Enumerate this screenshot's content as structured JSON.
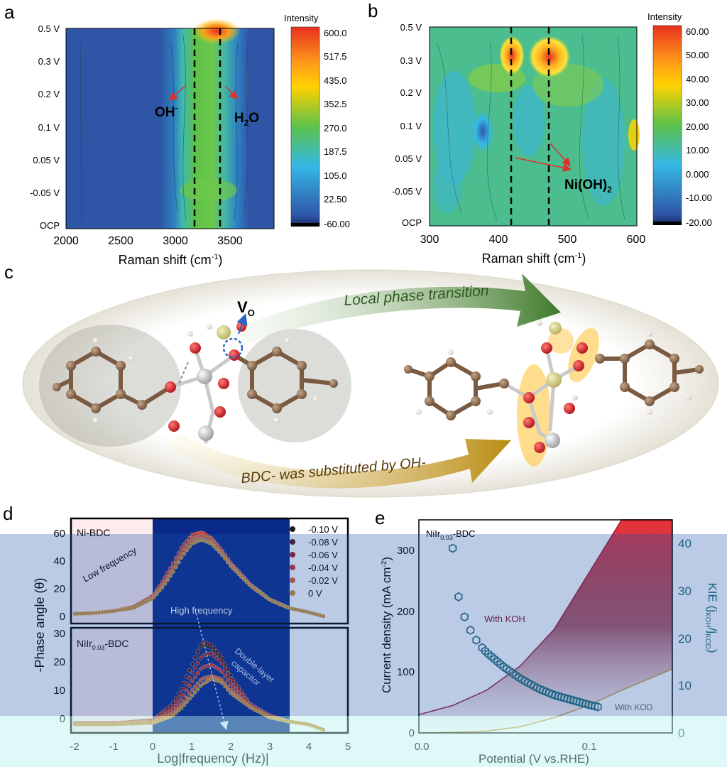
{
  "panel_labels": {
    "a": "a",
    "b": "b",
    "c": "c",
    "d": "d",
    "e": "e"
  },
  "colors": {
    "deep_blue": "#2f55a6",
    "cyan": "#35b8e6",
    "green": "#5cc24a",
    "yellow": "#ffd200",
    "red": "#e8301e",
    "dark_red": "#8a0f1f",
    "teal_marker": "#1b6b73",
    "atom_carbon": "#8b6b4e",
    "atom_oxygen": "#d8232a",
    "atom_metal": "#c9c9c9",
    "atom_gold": "#d8d28a"
  },
  "panel_a": {
    "colorbar_title": "Intensity",
    "colorbar_ticks": [
      "600.0",
      "517.5",
      "435.0",
      "352.5",
      "270.0",
      "187.5",
      "105.0",
      "22.50",
      "-60.00"
    ],
    "y_ticks": [
      "0.5 V",
      "0.3 V",
      "0.2 V",
      "0.1 V",
      "0.05 V",
      "-0.05 V",
      "OCP"
    ],
    "x_ticks": [
      "2000",
      "2500",
      "3000",
      "3500"
    ],
    "xlabel_main": "Raman shift (cm",
    "xlabel_sup": "-1",
    "xlabel_end": ")",
    "anno_oh_main": "OH",
    "anno_oh_sup": "-",
    "anno_h2o_h": "H",
    "anno_h2o_sub": "2",
    "anno_h2o_o": "O"
  },
  "panel_b": {
    "colorbar_title": "Intensity",
    "colorbar_ticks": [
      "60.00",
      "50.00",
      "40.00",
      "30.00",
      "20.00",
      "10.00",
      "0.000",
      "-10.00",
      "-20.00"
    ],
    "y_ticks": [
      "0.5 V",
      "0.3 V",
      "0.2 V",
      "0.1 V",
      "0.05 V",
      "-0.05 V",
      "OCP"
    ],
    "x_ticks": [
      "300",
      "400",
      "500",
      "600"
    ],
    "xlabel_main": "Raman shift (cm",
    "xlabel_sup": "-1",
    "xlabel_end": ")",
    "anno_main": "Ni(OH)",
    "anno_sub": "2"
  },
  "panel_c": {
    "vo_main": "V",
    "vo_sub": "O",
    "top_arrow_label": "Local phase transition",
    "bottom_arrow_label": "BDC- was substituted by OH-"
  },
  "panel_d": {
    "top_sample": "Ni-BDC",
    "bottom_sample_main": "NiIr",
    "bottom_sample_sub": "0.03",
    "bottom_sample_end": "-BDC",
    "low_freq_label": "Low frequency",
    "high_freq_label": "High frequency",
    "dl_label_1": "Double-layer",
    "dl_label_2": "capacitor",
    "ylabel": "-Phase angle (θ)",
    "xlabel": "Log|frequency (Hz)|",
    "x_ticks": [
      "-2",
      "-1",
      "0",
      "1",
      "2",
      "3",
      "4",
      "5"
    ],
    "y_ticks_top": [
      "0",
      "20",
      "40",
      "60"
    ],
    "y_ticks_bottom": [
      "0",
      "10",
      "20",
      "30"
    ],
    "legend": [
      "-0.10 V",
      "-0.08 V",
      "-0.06 V",
      "-0.04 V",
      "-0.02 V",
      "0 V"
    ]
  },
  "panel_e": {
    "sample_main": "NiIr",
    "sample_sub": "0.03",
    "sample_end": "-BDC",
    "with_koh": "With KOH",
    "with_kod": "With KOD",
    "ylabel_main": "Current density (mA cm",
    "ylabel_sup": "-2",
    "ylabel_end": ")",
    "y2label": "KIE (j",
    "y2_sub1": "KOH",
    "y2_mid": "/j",
    "y2_sub2": "KOD",
    "y2_end": ")",
    "xlabel": "Potential (V vs.RHE)",
    "x_ticks": [
      "0.0",
      "0.1"
    ],
    "y_ticks": [
      "0",
      "100",
      "200",
      "300"
    ],
    "y2_ticks": [
      "0",
      "10",
      "20",
      "30",
      "40"
    ]
  },
  "chart_data": [
    {
      "panel": "d-top",
      "type": "scatter",
      "x": [
        -2.0,
        -1.5,
        -1.0,
        -0.5,
        0.0,
        0.25,
        0.5,
        0.75,
        1.0,
        1.25,
        1.5,
        1.75,
        2.0,
        2.5,
        3.0,
        3.5,
        4.0,
        4.4
      ],
      "series": [
        {
          "name": "-0.10 V",
          "values": [
            2,
            2.5,
            4,
            7,
            14,
            22,
            32,
            44,
            53,
            55,
            52,
            45,
            36,
            22,
            12,
            6,
            3,
            0
          ]
        },
        {
          "name": "-0.08 V",
          "values": [
            2,
            2.5,
            4,
            7,
            15,
            24,
            36,
            48,
            57,
            59,
            55,
            47,
            38,
            23,
            12,
            6,
            3,
            0
          ]
        },
        {
          "name": "-0.06 V",
          "values": [
            2,
            2.5,
            4,
            7,
            15,
            25,
            37,
            50,
            58,
            60,
            56,
            48,
            38,
            23,
            12,
            6,
            3,
            0
          ]
        },
        {
          "name": "-0.04 V",
          "values": [
            2,
            2.5,
            4,
            7,
            15,
            25,
            37,
            49,
            58,
            60,
            56,
            48,
            38,
            23,
            12,
            6,
            3,
            0
          ]
        },
        {
          "name": "-0.02 V",
          "values": [
            2,
            2.5,
            4,
            7,
            14,
            23,
            34,
            46,
            55,
            58,
            55,
            47,
            37,
            22,
            12,
            6,
            3,
            0
          ]
        },
        {
          "name": "0 V",
          "values": [
            2,
            2.5,
            4,
            6,
            13,
            21,
            31,
            43,
            52,
            55,
            52,
            45,
            36,
            22,
            12,
            6,
            3,
            0
          ]
        }
      ],
      "xlim": [
        -2.1,
        5
      ],
      "ylim": [
        -5,
        70
      ]
    },
    {
      "panel": "d-bottom",
      "type": "scatter",
      "x": [
        -2.0,
        -1.0,
        0.0,
        0.5,
        0.75,
        1.0,
        1.25,
        1.5,
        1.75,
        2.0,
        2.5,
        3.0,
        3.5,
        4.0,
        4.4
      ],
      "series": [
        {
          "name": "-0.10 V",
          "values": [
            1.5,
            1.5,
            2.5,
            8,
            14,
            22,
            29,
            28,
            24,
            17,
            8,
            4,
            2,
            1,
            -1
          ]
        },
        {
          "name": "-0.08 V",
          "values": [
            1.5,
            1.5,
            2.5,
            8,
            14,
            22,
            30,
            29,
            25,
            18,
            8,
            4,
            2,
            1,
            -1
          ]
        },
        {
          "name": "-0.06 V",
          "values": [
            1.5,
            1.5,
            2.5,
            7,
            12,
            19,
            25,
            26,
            23,
            17,
            8,
            4,
            2,
            1,
            -1
          ]
        },
        {
          "name": "-0.04 V",
          "values": [
            1.5,
            1.5,
            2,
            6,
            10,
            16,
            21,
            22,
            20,
            15,
            8,
            4,
            2,
            1,
            -1
          ]
        },
        {
          "name": "-0.02 V",
          "values": [
            1,
            1,
            2,
            5,
            8,
            13,
            17,
            18,
            17,
            13,
            7,
            3.5,
            2,
            1,
            -1
          ]
        },
        {
          "name": "0 V",
          "values": [
            1,
            1,
            1.5,
            4,
            7,
            11,
            15,
            17,
            16,
            12,
            7,
            3.5,
            2,
            1,
            -1
          ]
        }
      ],
      "xlim": [
        -2.1,
        5
      ],
      "ylim": [
        -2,
        35
      ]
    },
    {
      "panel": "e",
      "type": "line",
      "x": [
        0.0,
        0.02,
        0.04,
        0.06,
        0.08,
        0.1,
        0.12,
        0.15
      ],
      "series": [
        {
          "name": "With KOH",
          "values": [
            30,
            45,
            70,
            110,
            170,
            260,
            350,
            350
          ]
        },
        {
          "name": "With KOD",
          "values": [
            0,
            1,
            3,
            10,
            25,
            45,
            70,
            105
          ]
        }
      ],
      "kie_x": [
        0.02,
        0.021,
        0.022,
        0.024,
        0.026,
        0.028,
        0.03,
        0.035,
        0.04,
        0.05,
        0.06,
        0.07,
        0.08,
        0.09,
        0.1,
        0.106
      ],
      "kie_y": [
        39,
        35,
        31,
        28,
        25.5,
        23.5,
        22,
        19,
        17,
        14,
        11.5,
        9.5,
        8,
        7,
        6,
        5.5
      ],
      "xlim": [
        0.0,
        0.15
      ],
      "ylim": [
        0,
        350
      ],
      "y2lim": [
        0,
        45
      ]
    }
  ]
}
